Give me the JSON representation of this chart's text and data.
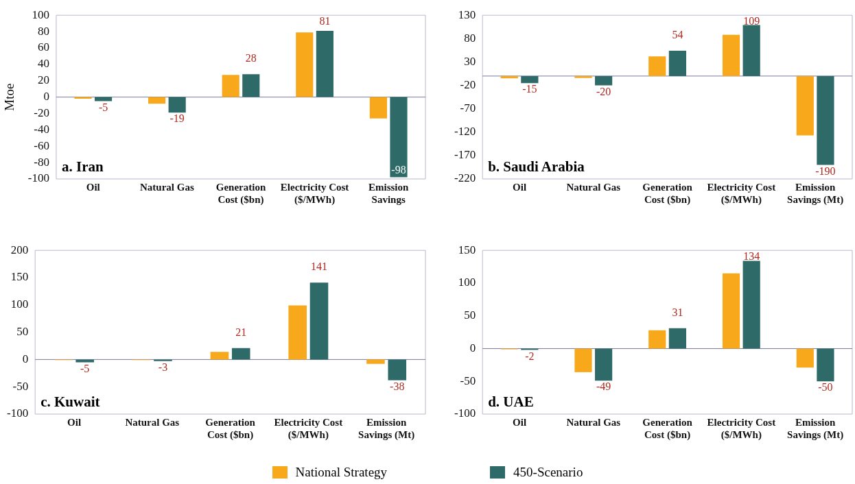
{
  "chart_data": [
    {
      "type": "bar",
      "title": "a. Iran",
      "ylabel": "Mtoe",
      "categories": [
        "Oil",
        "Natural Gas",
        "Generation Cost ($bn)",
        "Electricity Cost ($/MWh)",
        "Emission Savings"
      ],
      "series": [
        {
          "name": "National Strategy",
          "color": "#f7a81b",
          "values": [
            -2,
            -8,
            27,
            79,
            -26
          ]
        },
        {
          "name": "450-Scenario",
          "color": "#2e6a68",
          "values": [
            -5,
            -19,
            28,
            81,
            -98
          ],
          "value_labels": [
            "-5",
            "-19",
            "28",
            "81",
            "-98"
          ]
        }
      ],
      "ylim": [
        -100,
        100
      ],
      "yticks": [
        -100,
        -80,
        -60,
        -40,
        -20,
        0,
        20,
        40,
        60,
        80,
        100
      ],
      "grid": false,
      "legend": "bottom",
      "ref_lines": [
        {
          "axis": "y",
          "value": 0,
          "color": "#7a7aa0"
        }
      ]
    },
    {
      "type": "bar",
      "title": "b. Saudi Arabia",
      "categories": [
        "Oil",
        "Natural Gas",
        "Generation Cost ($bn)",
        "Electricity Cost ($/MWh)",
        "Emission Savings (Mt)"
      ],
      "series": [
        {
          "color": "#f7a81b",
          "values": [
            -5,
            -4,
            42,
            88,
            -127
          ]
        },
        {
          "color": "#2e6a68",
          "values": [
            -15,
            -20,
            54,
            109,
            -190
          ],
          "value_labels": [
            "-15",
            "-20",
            "54",
            "109",
            "-190"
          ]
        }
      ],
      "ylim": [
        -220,
        130
      ],
      "yticks": [
        -220,
        -170,
        -120,
        -70,
        -20,
        30,
        80,
        130
      ],
      "grid": false,
      "ref_lines": [
        {
          "axis": "y",
          "value": 0,
          "color": "#7a7aa0"
        }
      ]
    },
    {
      "type": "bar",
      "title": "c. Kuwait",
      "categories": [
        "Oil",
        "Natural Gas",
        "Generation Cost ($bn)",
        "Electricity Cost ($/MWh)",
        "Emission Savings (Mt)"
      ],
      "series": [
        {
          "color": "#f7a81b",
          "values": [
            -1,
            -1,
            14,
            99,
            -8
          ]
        },
        {
          "color": "#2e6a68",
          "values": [
            -5,
            -3,
            21,
            141,
            -38
          ],
          "value_labels": [
            "-5",
            "-3",
            "21",
            "141",
            "-38"
          ]
        }
      ],
      "ylim": [
        -100,
        200
      ],
      "yticks": [
        -100,
        -50,
        0,
        50,
        100,
        150,
        200
      ],
      "grid": false,
      "ref_lines": [
        {
          "axis": "y",
          "value": 0,
          "color": "#7a7aa0"
        }
      ]
    },
    {
      "type": "bar",
      "title": "d. UAE",
      "categories": [
        "Oil",
        "Natural Gas",
        "Generation Cost ($bn)",
        "Electricity Cost ($/MWh)",
        "Emission Savings (Mt)"
      ],
      "series": [
        {
          "color": "#f7a81b",
          "values": [
            -1,
            -36,
            28,
            115,
            -29
          ]
        },
        {
          "color": "#2e6a68",
          "values": [
            -2,
            -49,
            31,
            134,
            -50
          ],
          "value_labels": [
            "-2",
            "-49",
            "31",
            "134",
            "-50"
          ]
        }
      ],
      "ylim": [
        -100,
        150
      ],
      "yticks": [
        -100,
        -50,
        0,
        50,
        100,
        150
      ],
      "grid": false,
      "ref_lines": [
        {
          "axis": "y",
          "value": 0,
          "color": "#7a7aa0"
        }
      ]
    }
  ]
}
